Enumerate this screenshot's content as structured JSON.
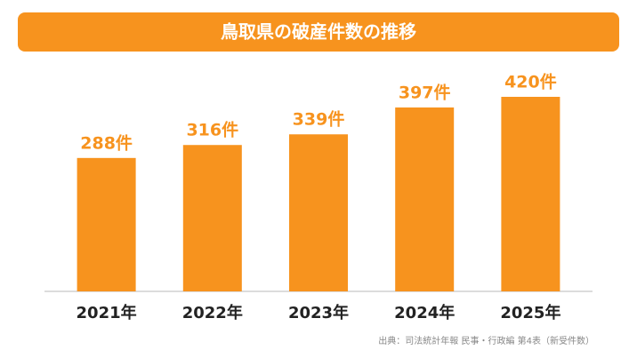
{
  "chart_data": {
    "type": "bar",
    "title": "鳥取県の破産件数の推移",
    "categories": [
      "2021年",
      "2022年",
      "2023年",
      "2024年",
      "2025年"
    ],
    "values": [
      288,
      316,
      339,
      397,
      420
    ],
    "value_labels": [
      "288件",
      "316件",
      "339件",
      "397件",
      "420件"
    ],
    "color": "#f7931e",
    "source": "出典：司法統計年報 民事・行政編 第4表（新受件数）"
  }
}
